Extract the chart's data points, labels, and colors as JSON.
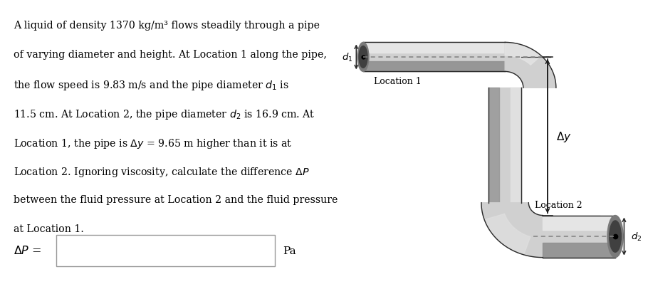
{
  "bg_color": "#ffffff",
  "text_color": "#000000",
  "pipe_gray": "#c8c8c8",
  "pipe_dark": "#8a8a8a",
  "pipe_darker": "#606060",
  "pipe_light": "#e8e8e8",
  "pipe_edge_color": "#2a2a2a",
  "dashed_color": "#808080",
  "arrow_color": "#1a1a1a",
  "paragraph": [
    "A liquid of density 1370 kg/m³ flows steadily through a pipe",
    "of varying diameter and height. At Location 1 along the pipe,",
    "the flow speed is 9.83 m/s and the pipe diameter $d_1$ is",
    "11.5 cm. At Location 2, the pipe diameter $d_2$ is 16.9 cm. At",
    "Location 1, the pipe is $\\Delta y$ = 9.65 m higher than it is at",
    "Location 2. Ignoring viscosity, calculate the difference $\\Delta P$",
    "between the fluid pressure at Location 2 and the fluid pressure",
    "at Location 1."
  ],
  "answer_label": "$\\Delta P$ =",
  "answer_unit": "Pa",
  "loc1_label": "Location 1",
  "loc2_label": "Location 2",
  "dy_label": "$\\Delta y$",
  "d1_label": "$d_1$",
  "d2_label": "$d_2$"
}
